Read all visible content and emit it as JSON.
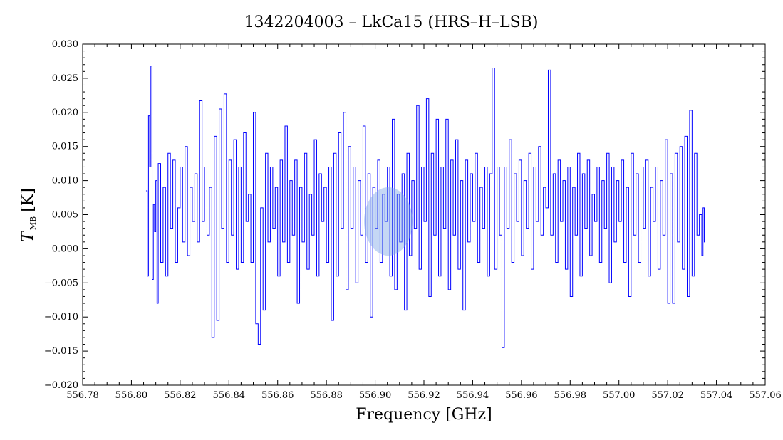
{
  "chart_data": {
    "type": "line",
    "title": "1342204003 – LkCa15 (HRS–H–LSB)",
    "xlabel": "Frequency [GHz]",
    "ylabel": {
      "symbol": "T",
      "subscript": "MB",
      "unit": "[K]"
    },
    "xlim": [
      556.78,
      557.06
    ],
    "ylim": [
      -0.02,
      0.03
    ],
    "xticks": [
      "556.78",
      "556.80",
      "556.82",
      "556.84",
      "556.86",
      "556.88",
      "556.90",
      "556.92",
      "556.94",
      "556.96",
      "556.98",
      "557.00",
      "557.02",
      "557.04",
      "557.06"
    ],
    "yticks": [
      "−0.020",
      "−0.015",
      "−0.010",
      "−0.005",
      "0.000",
      "0.005",
      "0.010",
      "0.015",
      "0.020",
      "0.025",
      "0.030"
    ],
    "grid": false,
    "series": [
      {
        "color": "#0000ff",
        "x_start": 556.806,
        "x_end": 557.035,
        "points": [
          [
            556.806,
            0.0085
          ],
          [
            556.8065,
            -0.004
          ],
          [
            556.807,
            0.0195
          ],
          [
            556.8075,
            0.012
          ],
          [
            556.808,
            0.0268
          ],
          [
            556.8085,
            -0.0045
          ],
          [
            556.809,
            0.0065
          ],
          [
            556.8095,
            0.0025
          ],
          [
            556.81,
            0.01
          ],
          [
            556.8105,
            -0.008
          ],
          [
            556.811,
            0.0125
          ],
          [
            556.812,
            -0.002
          ],
          [
            556.813,
            0.009
          ],
          [
            556.814,
            -0.004
          ],
          [
            556.815,
            0.014
          ],
          [
            556.816,
            0.003
          ],
          [
            556.817,
            0.013
          ],
          [
            556.818,
            -0.002
          ],
          [
            556.819,
            0.006
          ],
          [
            556.82,
            0.012
          ],
          [
            556.821,
            0.001
          ],
          [
            556.822,
            0.015
          ],
          [
            556.823,
            -0.001
          ],
          [
            556.824,
            0.009
          ],
          [
            556.825,
            0.004
          ],
          [
            556.826,
            0.011
          ],
          [
            556.827,
            0.001
          ],
          [
            556.828,
            0.0217
          ],
          [
            556.829,
            0.004
          ],
          [
            556.83,
            0.012
          ],
          [
            556.831,
            0.002
          ],
          [
            556.832,
            0.009
          ],
          [
            556.833,
            -0.013
          ],
          [
            556.834,
            0.0165
          ],
          [
            556.835,
            -0.0105
          ],
          [
            556.836,
            0.0205
          ],
          [
            556.837,
            0.003
          ],
          [
            556.838,
            0.0227
          ],
          [
            556.839,
            -0.002
          ],
          [
            556.84,
            0.013
          ],
          [
            556.841,
            0.002
          ],
          [
            556.842,
            0.016
          ],
          [
            556.843,
            -0.003
          ],
          [
            556.844,
            0.012
          ],
          [
            556.845,
            -0.002
          ],
          [
            556.846,
            0.017
          ],
          [
            556.847,
            0.004
          ],
          [
            556.848,
            0.008
          ],
          [
            556.849,
            -0.002
          ],
          [
            556.85,
            0.02
          ],
          [
            556.851,
            -0.011
          ],
          [
            556.852,
            -0.014
          ],
          [
            556.853,
            0.006
          ],
          [
            556.854,
            -0.009
          ],
          [
            556.855,
            0.014
          ],
          [
            556.856,
            0.001
          ],
          [
            556.857,
            0.012
          ],
          [
            556.858,
            0.003
          ],
          [
            556.859,
            0.009
          ],
          [
            556.86,
            -0.004
          ],
          [
            556.861,
            0.013
          ],
          [
            556.862,
            0.001
          ],
          [
            556.863,
            0.018
          ],
          [
            556.864,
            -0.002
          ],
          [
            556.865,
            0.01
          ],
          [
            556.866,
            0.002
          ],
          [
            556.867,
            0.013
          ],
          [
            556.868,
            -0.008
          ],
          [
            556.869,
            0.009
          ],
          [
            556.87,
            0.001
          ],
          [
            556.871,
            0.014
          ],
          [
            556.872,
            -0.003
          ],
          [
            556.873,
            0.008
          ],
          [
            556.874,
            0.002
          ],
          [
            556.875,
            0.016
          ],
          [
            556.876,
            -0.004
          ],
          [
            556.877,
            0.011
          ],
          [
            556.878,
            0.004
          ],
          [
            556.879,
            0.009
          ],
          [
            556.88,
            -0.002
          ],
          [
            556.881,
            0.012
          ],
          [
            556.882,
            -0.0105
          ],
          [
            556.883,
            0.014
          ],
          [
            556.884,
            -0.004
          ],
          [
            556.885,
            0.017
          ],
          [
            556.886,
            0.003
          ],
          [
            556.887,
            0.02
          ],
          [
            556.888,
            -0.006
          ],
          [
            556.889,
            0.015
          ],
          [
            556.89,
            0.003
          ],
          [
            556.891,
            0.012
          ],
          [
            556.892,
            -0.005
          ],
          [
            556.893,
            0.01
          ],
          [
            556.894,
            0.002
          ],
          [
            556.895,
            0.018
          ],
          [
            556.896,
            -0.002
          ],
          [
            556.897,
            0.011
          ],
          [
            556.898,
            -0.01
          ],
          [
            556.899,
            0.009
          ],
          [
            556.9,
            0.003
          ],
          [
            556.901,
            0.013
          ],
          [
            556.902,
            -0.002
          ],
          [
            556.903,
            0.008
          ],
          [
            556.904,
            0.004
          ],
          [
            556.905,
            0.012
          ],
          [
            556.906,
            -0.004
          ],
          [
            556.907,
            0.019
          ],
          [
            556.908,
            -0.006
          ],
          [
            556.909,
            0.008
          ],
          [
            556.91,
            0.001
          ],
          [
            556.911,
            0.011
          ],
          [
            556.912,
            -0.009
          ],
          [
            556.913,
            0.014
          ],
          [
            556.914,
            -0.001
          ],
          [
            556.915,
            0.01
          ],
          [
            556.916,
            0.003
          ],
          [
            556.917,
            0.021
          ],
          [
            556.918,
            -0.003
          ],
          [
            556.919,
            0.012
          ],
          [
            556.92,
            0.004
          ],
          [
            556.921,
            0.022
          ],
          [
            556.922,
            -0.007
          ],
          [
            556.923,
            0.014
          ],
          [
            556.924,
            0.002
          ],
          [
            556.925,
            0.019
          ],
          [
            556.926,
            -0.004
          ],
          [
            556.927,
            0.012
          ],
          [
            556.928,
            0.003
          ],
          [
            556.929,
            0.019
          ],
          [
            556.93,
            -0.006
          ],
          [
            556.931,
            0.013
          ],
          [
            556.932,
            0.002
          ],
          [
            556.933,
            0.016
          ],
          [
            556.934,
            -0.003
          ],
          [
            556.935,
            0.01
          ],
          [
            556.936,
            -0.009
          ],
          [
            556.937,
            0.013
          ],
          [
            556.938,
            0.001
          ],
          [
            556.939,
            0.011
          ],
          [
            556.94,
            0.004
          ],
          [
            556.941,
            0.014
          ],
          [
            556.942,
            -0.002
          ],
          [
            556.943,
            0.009
          ],
          [
            556.944,
            0.003
          ],
          [
            556.945,
            0.012
          ],
          [
            556.946,
            -0.004
          ],
          [
            556.947,
            0.011
          ],
          [
            556.948,
            0.0265
          ],
          [
            556.949,
            -0.003
          ],
          [
            556.95,
            0.012
          ],
          [
            556.951,
            0.002
          ],
          [
            556.952,
            -0.0145
          ],
          [
            556.953,
            0.012
          ],
          [
            556.954,
            0.003
          ],
          [
            556.955,
            0.016
          ],
          [
            556.956,
            -0.002
          ],
          [
            556.957,
            0.011
          ],
          [
            556.958,
            0.004
          ],
          [
            556.959,
            0.013
          ],
          [
            556.96,
            -0.001
          ],
          [
            556.961,
            0.01
          ],
          [
            556.962,
            0.003
          ],
          [
            556.963,
            0.014
          ],
          [
            556.964,
            -0.003
          ],
          [
            556.965,
            0.012
          ],
          [
            556.966,
            0.004
          ],
          [
            556.967,
            0.015
          ],
          [
            556.968,
            0.002
          ],
          [
            556.969,
            0.009
          ],
          [
            556.97,
            0.006
          ],
          [
            556.971,
            0.0262
          ],
          [
            556.972,
            0.002
          ],
          [
            556.973,
            0.011
          ],
          [
            556.974,
            -0.002
          ],
          [
            556.975,
            0.013
          ],
          [
            556.976,
            0.004
          ],
          [
            556.977,
            0.01
          ],
          [
            556.978,
            -0.003
          ],
          [
            556.979,
            0.012
          ],
          [
            556.98,
            -0.007
          ],
          [
            556.981,
            0.009
          ],
          [
            556.982,
            0.002
          ],
          [
            556.983,
            0.014
          ],
          [
            556.984,
            -0.004
          ],
          [
            556.985,
            0.011
          ],
          [
            556.986,
            0.003
          ],
          [
            556.987,
            0.013
          ],
          [
            556.988,
            -0.001
          ],
          [
            556.989,
            0.008
          ],
          [
            556.99,
            0.004
          ],
          [
            556.991,
            0.012
          ],
          [
            556.992,
            -0.002
          ],
          [
            556.993,
            0.01
          ],
          [
            556.994,
            0.003
          ],
          [
            556.995,
            0.014
          ],
          [
            556.996,
            -0.005
          ],
          [
            556.997,
            0.012
          ],
          [
            556.998,
            0.001
          ],
          [
            556.999,
            0.01
          ],
          [
            557.0,
            0.004
          ],
          [
            557.001,
            0.013
          ],
          [
            557.002,
            -0.002
          ],
          [
            557.003,
            0.009
          ],
          [
            557.004,
            -0.007
          ],
          [
            557.005,
            0.014
          ],
          [
            557.006,
            0.002
          ],
          [
            557.007,
            0.011
          ],
          [
            557.008,
            -0.002
          ],
          [
            557.009,
            0.012
          ],
          [
            557.01,
            0.003
          ],
          [
            557.011,
            0.013
          ],
          [
            557.012,
            -0.004
          ],
          [
            557.013,
            0.009
          ],
          [
            557.014,
            0.004
          ],
          [
            557.015,
            0.012
          ],
          [
            557.016,
            -0.003
          ],
          [
            557.017,
            0.01
          ],
          [
            557.018,
            0.002
          ],
          [
            557.019,
            0.016
          ],
          [
            557.02,
            -0.008
          ],
          [
            557.021,
            0.011
          ],
          [
            557.022,
            -0.008
          ],
          [
            557.023,
            0.014
          ],
          [
            557.024,
            0.001
          ],
          [
            557.025,
            0.015
          ],
          [
            557.026,
            -0.003
          ],
          [
            557.027,
            0.0165
          ],
          [
            557.028,
            -0.007
          ],
          [
            557.029,
            0.0203
          ],
          [
            557.03,
            -0.004
          ],
          [
            557.031,
            0.014
          ],
          [
            557.032,
            0.002
          ],
          [
            557.033,
            0.005
          ],
          [
            557.034,
            -0.001
          ],
          [
            557.0345,
            0.006
          ],
          [
            557.035,
            0.001
          ]
        ]
      }
    ]
  }
}
